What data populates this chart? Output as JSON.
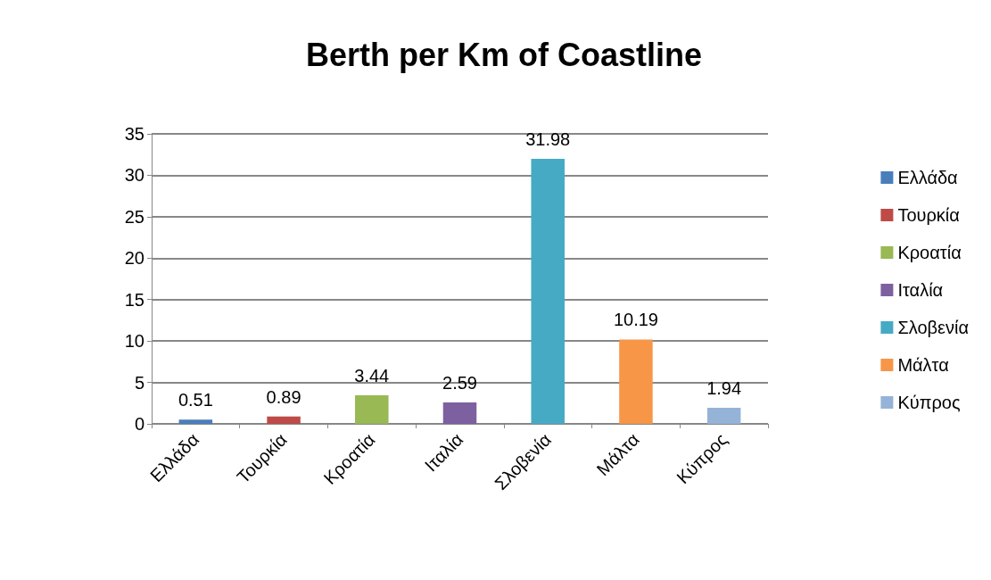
{
  "chart_data": {
    "type": "bar",
    "title": "Berth per Km of Coastline",
    "categories": [
      "Ελλάδα",
      "Τουρκία",
      "Κροατία",
      "Ιταλία",
      "Σλοβενία",
      "Μάλτα",
      "Κύπρος"
    ],
    "series": [
      {
        "name": "Ελλάδα",
        "color": "#4a7ebb",
        "values": [
          0.51,
          null,
          null,
          null,
          null,
          null,
          null
        ]
      },
      {
        "name": "Τουρκία",
        "color": "#be4b48",
        "values": [
          null,
          0.89,
          null,
          null,
          null,
          null,
          null
        ]
      },
      {
        "name": "Κροατία",
        "color": "#98b954",
        "values": [
          null,
          null,
          3.44,
          null,
          null,
          null,
          null
        ]
      },
      {
        "name": "Ιταλία",
        "color": "#7d60a0",
        "values": [
          null,
          null,
          null,
          2.59,
          null,
          null,
          null
        ]
      },
      {
        "name": "Σλοβενία",
        "color": "#46aac5",
        "values": [
          null,
          null,
          null,
          null,
          31.98,
          null,
          null
        ]
      },
      {
        "name": "Μάλτα",
        "color": "#f79646",
        "values": [
          null,
          null,
          null,
          null,
          null,
          10.19,
          null
        ]
      },
      {
        "name": "Κύπρος",
        "color": "#95b3d7",
        "values": [
          null,
          null,
          null,
          null,
          null,
          null,
          1.94
        ]
      }
    ],
    "ylim": [
      0,
      35
    ],
    "yticks": [
      0,
      5,
      10,
      15,
      20,
      25,
      30,
      35
    ],
    "grid": "y",
    "legend": "right",
    "data_labels": true
  }
}
